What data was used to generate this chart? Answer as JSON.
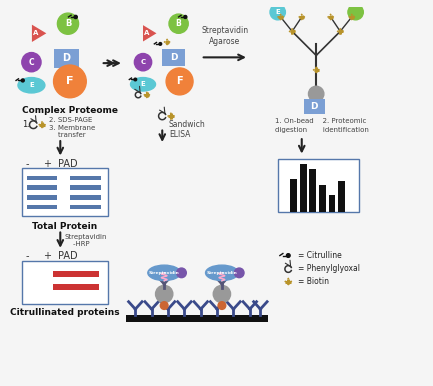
{
  "bg_color": "#f5f5f5",
  "colors": {
    "protein_A": "#d9534f",
    "protein_B": "#7dc242",
    "protein_C": "#8e44ad",
    "protein_D": "#7b9fd4",
    "protein_E": "#5bc8d4",
    "protein_F": "#f0813a",
    "band_blue": "#5577aa",
    "band_red": "#cc3333",
    "antibody": "#3a4a8a",
    "strep_blue": "#6699cc",
    "biotin_gold": "#b8932a",
    "gray_bead": "#999999",
    "dark": "#222222",
    "box_border": "#5577aa",
    "bar_color": "#111111",
    "hrp_purple": "#7755aa",
    "orange_bind": "#cc6633",
    "pink_line": "#ffaacc"
  },
  "labels": {
    "complex_proteome": "Complex Proteome",
    "sds_page": "2. SDS-PAGE\n3. Membrane\n    transfer",
    "pad": "PAD",
    "total_protein": "Total Protein",
    "strep_hrp": "Streptavidin\n    -HRP",
    "citrullinated": "Citrullinated proteins",
    "sandwich_elisa": "Sandwich\nELISA",
    "strep_agarose": "Streptavidin\nAgarose",
    "on_bead": "1. On-bead    2. Proteomic\ndigestion      identification",
    "leg_citrulline": "= Citrulline",
    "leg_phenylglyoxal": "= Phenylglyoxal",
    "leg_biotin": "= Biotin"
  }
}
